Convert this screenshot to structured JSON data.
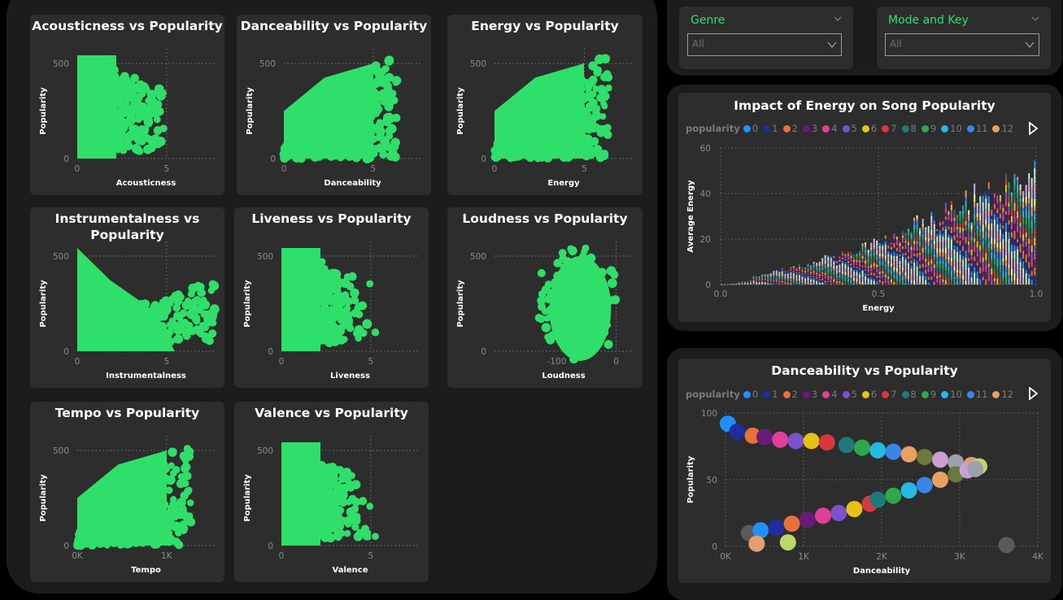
{
  "theme": {
    "accent": "#2ee06a",
    "point": "#2ee06a",
    "panel": "#1c1c1c",
    "card": "#2d2d2d"
  },
  "scatter_cards": [
    {
      "title_lines": [
        "Acousticness vs Popularity"
      ],
      "xlabel": "Acousticness",
      "ylabel": "Popularity",
      "xticks": [
        "0",
        "5"
      ],
      "yticks": [
        "0",
        "500"
      ],
      "shape": "wall"
    },
    {
      "title_lines": [
        "Danceability vs Popularity"
      ],
      "xlabel": "Danceability",
      "ylabel": "Popularity",
      "xticks": [
        "0",
        "5"
      ],
      "yticks": [
        "0",
        "500"
      ],
      "shape": "rise"
    },
    {
      "title_lines": [
        "Energy vs Popularity"
      ],
      "xlabel": "Energy",
      "ylabel": "Popularity",
      "xticks": [
        "0",
        "5"
      ],
      "yticks": [
        "0",
        "500"
      ],
      "shape": "rise"
    },
    {
      "title_lines": [
        "Instrumentalness vs",
        "Popularity"
      ],
      "xlabel": "Instrumentalness",
      "ylabel": "Popularity",
      "xticks": [
        "0",
        "5"
      ],
      "yticks": [
        "0",
        "500"
      ],
      "shape": "fall"
    },
    {
      "title_lines": [
        "Liveness vs Popularity"
      ],
      "xlabel": "Liveness",
      "ylabel": "Popularity",
      "xticks": [
        "0",
        "5"
      ],
      "yticks": [
        "0",
        "500"
      ],
      "shape": "wall"
    },
    {
      "title_lines": [
        "Loudness vs Popularity"
      ],
      "xlabel": "Loudness",
      "ylabel": "Popularity",
      "xticks": [
        "-100",
        "0"
      ],
      "yticks": [
        "0",
        "500"
      ],
      "shape": "blob"
    },
    {
      "title_lines": [
        "Tempo vs Popularity"
      ],
      "xlabel": "Tempo",
      "ylabel": "Popularity",
      "xticks": [
        "0K",
        "1K"
      ],
      "yticks": [
        "0",
        "500"
      ],
      "shape": "rise"
    },
    {
      "title_lines": [
        "Valence vs Popularity"
      ],
      "xlabel": "Valence",
      "ylabel": "Popularity",
      "xticks": [
        "0",
        "5"
      ],
      "yticks": [
        "0",
        "500"
      ],
      "shape": "wall"
    }
  ],
  "slicers": [
    {
      "label": "Genre",
      "value": "All"
    },
    {
      "label": "Mode and Key",
      "value": "All"
    }
  ],
  "legend": {
    "title": "popularity",
    "items": [
      {
        "label": "0",
        "color": "#1e90ff"
      },
      {
        "label": "1",
        "color": "#1f2d9e"
      },
      {
        "label": "2",
        "color": "#e8703a"
      },
      {
        "label": "3",
        "color": "#6a1b7a"
      },
      {
        "label": "4",
        "color": "#e0409a"
      },
      {
        "label": "5",
        "color": "#7b52c9"
      },
      {
        "label": "6",
        "color": "#e6c218"
      },
      {
        "label": "7",
        "color": "#d9363e"
      },
      {
        "label": "8",
        "color": "#1f7a7a"
      },
      {
        "label": "9",
        "color": "#2ea84a"
      },
      {
        "label": "10",
        "color": "#27b9e6"
      },
      {
        "label": "11",
        "color": "#3a86e6"
      },
      {
        "label": "12",
        "color": "#e8a060"
      }
    ]
  },
  "energy_chart": {
    "title": "Impact of Energy on Song Popularity",
    "xlabel": "Energy",
    "ylabel": "Average Energy",
    "xticks": [
      "0.0",
      "0.5",
      "1.0"
    ],
    "yticks": [
      "0",
      "20",
      "40",
      "60"
    ]
  },
  "dance_chart": {
    "title": "Danceability vs Popularity",
    "xlabel": "Danceability",
    "ylabel": "Popularity",
    "xticks": [
      "0K",
      "1K",
      "2K",
      "3K",
      "4K"
    ],
    "yticks": [
      "0",
      "50",
      "100"
    ]
  },
  "chart_data": [
    {
      "type": "scatter",
      "title": "Acousticness vs Popularity",
      "xlabel": "Acousticness",
      "ylabel": "Popularity",
      "xlim": [
        0,
        7
      ],
      "ylim": [
        0,
        500
      ]
    },
    {
      "type": "scatter",
      "title": "Danceability vs Popularity",
      "xlabel": "Danceability",
      "ylabel": "Popularity",
      "xlim": [
        0,
        7
      ],
      "ylim": [
        0,
        500
      ]
    },
    {
      "type": "scatter",
      "title": "Energy vs Popularity",
      "xlabel": "Energy",
      "ylabel": "Popularity",
      "xlim": [
        0,
        7
      ],
      "ylim": [
        0,
        500
      ]
    },
    {
      "type": "scatter",
      "title": "Instrumentalness vs Popularity",
      "xlabel": "Instrumentalness",
      "ylabel": "Popularity",
      "xlim": [
        0,
        7
      ],
      "ylim": [
        0,
        500
      ]
    },
    {
      "type": "scatter",
      "title": "Liveness vs Popularity",
      "xlabel": "Liveness",
      "ylabel": "Popularity",
      "xlim": [
        0,
        7
      ],
      "ylim": [
        0,
        500
      ]
    },
    {
      "type": "scatter",
      "title": "Loudness vs Popularity",
      "xlabel": "Loudness",
      "ylabel": "Popularity",
      "xlim": [
        -170,
        40
      ],
      "ylim": [
        0,
        500
      ]
    },
    {
      "type": "scatter",
      "title": "Tempo vs Popularity",
      "xlabel": "Tempo",
      "ylabel": "Popularity",
      "xlim": [
        0,
        1500
      ],
      "ylim": [
        0,
        500
      ]
    },
    {
      "type": "scatter",
      "title": "Valence vs Popularity",
      "xlabel": "Valence",
      "ylabel": "Popularity",
      "xlim": [
        0,
        7
      ],
      "ylim": [
        0,
        500
      ]
    },
    {
      "type": "bar",
      "title": "Impact of Energy on Song Popularity",
      "xlabel": "Energy",
      "ylabel": "Average Energy",
      "xlim": [
        0,
        1
      ],
      "ylim": [
        0,
        60
      ],
      "stacked": true
    },
    {
      "type": "scatter",
      "title": "Danceability vs Popularity",
      "xlabel": "Danceability",
      "ylabel": "Popularity",
      "xlim": [
        0,
        4000
      ],
      "ylim": [
        0,
        100
      ],
      "points": [
        [
          30,
          92
        ],
        [
          150,
          86
        ],
        [
          350,
          83
        ],
        [
          500,
          82
        ],
        [
          700,
          80
        ],
        [
          900,
          79
        ],
        [
          1100,
          79
        ],
        [
          1300,
          78
        ],
        [
          1550,
          76
        ],
        [
          1750,
          74
        ],
        [
          1950,
          72
        ],
        [
          2150,
          71
        ],
        [
          2350,
          69
        ],
        [
          2550,
          67
        ],
        [
          2750,
          65
        ],
        [
          2950,
          63
        ],
        [
          3150,
          61
        ],
        [
          3250,
          60
        ],
        [
          300,
          10
        ],
        [
          450,
          12
        ],
        [
          650,
          14
        ],
        [
          850,
          17
        ],
        [
          1050,
          20
        ],
        [
          1250,
          23
        ],
        [
          1450,
          25
        ],
        [
          1650,
          28
        ],
        [
          1850,
          32
        ],
        [
          1950,
          35
        ],
        [
          2150,
          38
        ],
        [
          2350,
          42
        ],
        [
          2550,
          46
        ],
        [
          2750,
          50
        ],
        [
          2950,
          54
        ],
        [
          3100,
          57
        ],
        [
          3200,
          58
        ],
        [
          400,
          2
        ],
        [
          800,
          3
        ],
        [
          3600,
          1
        ]
      ]
    }
  ]
}
